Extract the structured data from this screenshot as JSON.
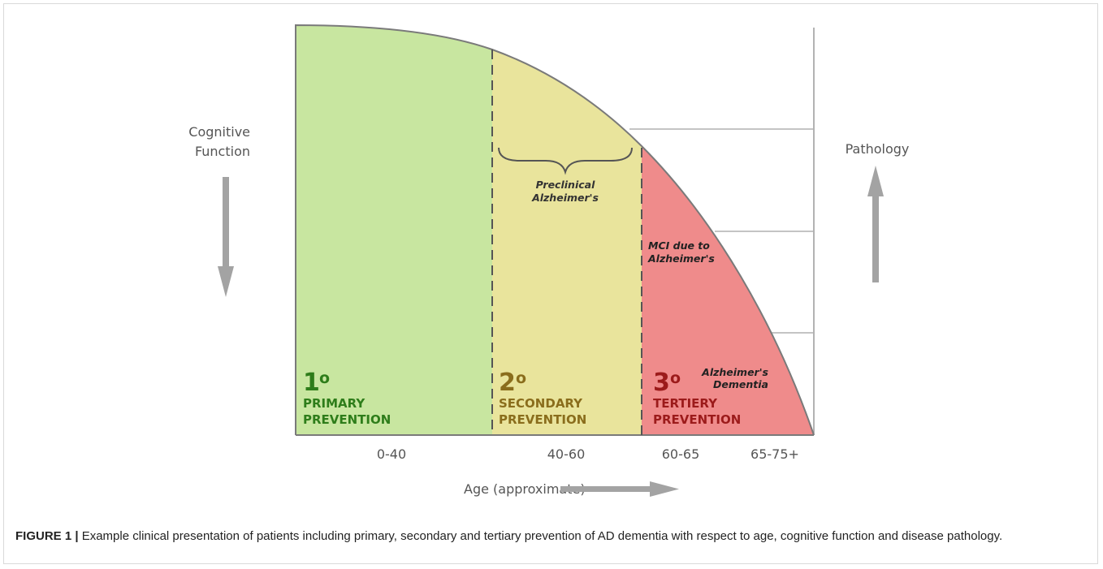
{
  "left_axis": {
    "label_line1": "Cognitive",
    "label_line2": "Function",
    "direction": "down"
  },
  "right_axis": {
    "label": "Pathology",
    "direction": "up"
  },
  "x_axis": {
    "label": "Age (approximate)",
    "direction": "right"
  },
  "age_ticks": [
    "0-40",
    "40-60",
    "60-65",
    "65-75+"
  ],
  "stages": [
    {
      "numeral": "1",
      "degree": "o",
      "line1": "PRIMARY",
      "line2": "PREVENTION",
      "color": "#2e7d1a",
      "fill": "#c8e6a0"
    },
    {
      "numeral": "2",
      "degree": "o",
      "line1": "SECONDARY",
      "line2": "PREVENTION",
      "color": "#8a6d1c",
      "fill": "#e9e49c"
    },
    {
      "numeral": "3",
      "degree": "o",
      "line1": "TERTIERY",
      "line2": "PREVENTION",
      "color": "#9c1b1b",
      "fill": "#ef8b8b"
    }
  ],
  "annotations": {
    "preclinical_line1": "Preclinical",
    "preclinical_line2": "Alzheimer's",
    "mci_line1": "MCI due to",
    "mci_line2": "Alzheimer's",
    "dementia_line1": "Alzheimer's",
    "dementia_line2": "Dementia"
  },
  "caption": {
    "label": "FIGURE 1 |",
    "text": " Example clinical presentation of patients including primary, secondary and tertiary prevention of AD dementia with respect to age, cognitive function and disease pathology."
  },
  "colors": {
    "curve": "#7a7a7a",
    "arrow": "#a3a3a3",
    "axis_text": "#555555"
  }
}
